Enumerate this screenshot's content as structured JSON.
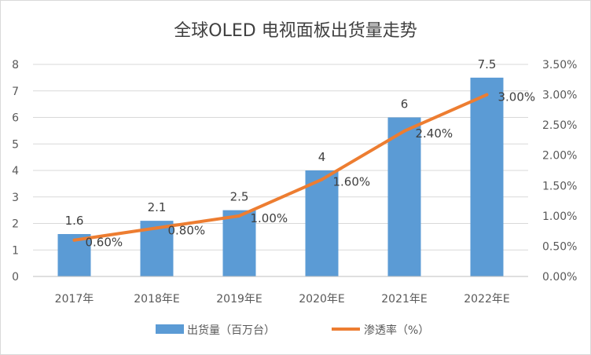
{
  "chart_data": {
    "type": "bar",
    "title": "全球OLED 电视面板出货量走势",
    "categories": [
      "2017年",
      "2018年E",
      "2019年E",
      "2020年E",
      "2021年E",
      "2022年E"
    ],
    "series": [
      {
        "name": "出货量（百万台）",
        "type": "bar",
        "axis": "left",
        "values": [
          1.6,
          2.1,
          2.5,
          4,
          6,
          7.5
        ],
        "labels": [
          "1.6",
          "2.1",
          "2.5",
          "4",
          "6",
          "7.5"
        ],
        "color": "#5b9bd5"
      },
      {
        "name": "渗透率（%）",
        "type": "line",
        "axis": "right",
        "values": [
          0.6,
          0.8,
          1.0,
          1.6,
          2.4,
          3.0
        ],
        "labels": [
          "0.60%",
          "0.80%",
          "1.00%",
          "1.60%",
          "2.40%",
          "3.00%"
        ],
        "color": "#ed7d31"
      }
    ],
    "y_left": {
      "min": 0,
      "max": 8,
      "ticks": [
        "0",
        "1",
        "2",
        "3",
        "4",
        "5",
        "6",
        "7",
        "8"
      ]
    },
    "y_right": {
      "min": 0,
      "max": 3.5,
      "ticks": [
        "0.00%",
        "0.50%",
        "1.00%",
        "1.50%",
        "2.00%",
        "2.50%",
        "3.00%",
        "3.50%"
      ]
    },
    "grid": true,
    "legend": "bottom"
  }
}
